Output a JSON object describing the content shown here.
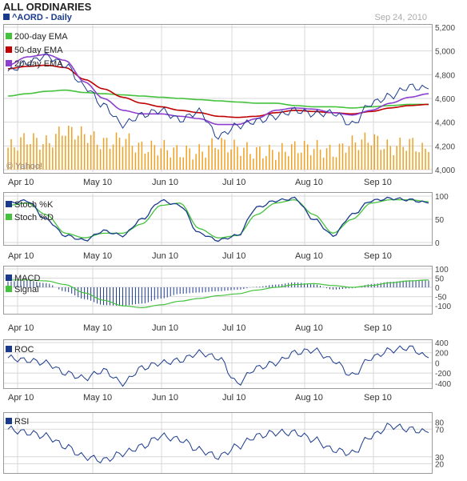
{
  "header": {
    "title": "ALL ORDINARIES",
    "symbol": "^AORD - Daily",
    "date": "Sep 24, 2010",
    "watermark": "© Yahoo!"
  },
  "colors": {
    "price": "#1a3a8c",
    "ema200": "#44c23c",
    "ema50": "#c00000",
    "ema20": "#8e3fd0",
    "volume": "#f0a020",
    "stochK": "#1a3a8c",
    "stochD": "#44c23c",
    "macd": "#1a3a8c",
    "signal": "#44c23c",
    "roc": "#1a3a8c",
    "rsi": "#1a3a8c",
    "grid": "#d8d8d8",
    "panelBorder": "#9a9a9a"
  },
  "x_labels": [
    "Apr 10",
    "May 10",
    "Jun 10",
    "Jul 10",
    "Aug 10",
    "Sep 10"
  ],
  "chart_data": [
    {
      "type": "line",
      "name": "price",
      "legend": [
        "200-day EMA",
        "50-day EMA",
        "20-day EMA"
      ],
      "yticks": [
        "5,200",
        "5,000",
        "4,800",
        "4,600",
        "4,400",
        "4,200",
        "4,000"
      ],
      "ylim": [
        4000,
        5200
      ],
      "x": [
        "Apr 10",
        "",
        "",
        "May 10",
        "",
        "",
        "",
        "Jun 10",
        "",
        "",
        "",
        "Jul 10",
        "",
        "",
        "",
        "Aug 10",
        "",
        "",
        "",
        "Sep 10",
        "",
        "",
        ""
      ],
      "series": [
        {
          "name": "price",
          "values": [
            4830,
            4900,
            4960,
            4880,
            4700,
            4540,
            4380,
            4460,
            4500,
            4420,
            4490,
            4280,
            4370,
            4410,
            4450,
            4500,
            4470,
            4480,
            4380,
            4560,
            4620,
            4700,
            4680
          ]
        },
        {
          "name": "200-day EMA",
          "values": [
            4620,
            4640,
            4660,
            4670,
            4650,
            4640,
            4630,
            4620,
            4610,
            4600,
            4590,
            4580,
            4570,
            4560,
            4560,
            4540,
            4530,
            4530,
            4520,
            4530,
            4540,
            4550,
            4550
          ]
        },
        {
          "name": "50-day EMA",
          "values": [
            4850,
            4870,
            4880,
            4860,
            4760,
            4680,
            4610,
            4560,
            4530,
            4500,
            4480,
            4450,
            4440,
            4450,
            4480,
            4500,
            4490,
            4480,
            4470,
            4490,
            4520,
            4540,
            4550
          ]
        },
        {
          "name": "20-day EMA",
          "values": [
            4880,
            4950,
            4970,
            4920,
            4740,
            4600,
            4500,
            4470,
            4470,
            4450,
            4430,
            4380,
            4380,
            4430,
            4500,
            4520,
            4510,
            4480,
            4460,
            4500,
            4560,
            4610,
            4640
          ]
        }
      ]
    },
    {
      "type": "bar",
      "name": "volume",
      "values": [
        0.5,
        0.7,
        0.6,
        0.9,
        0.8,
        0.6,
        0.7,
        0.5,
        0.5,
        0.4,
        0.4,
        0.6,
        0.5,
        0.4,
        0.4,
        0.5,
        0.5,
        0.4,
        0.6,
        0.7,
        0.5,
        0.6,
        0.4
      ]
    },
    {
      "type": "line",
      "name": "stochastic",
      "legend": [
        "Stoch %K",
        "Stoch %D"
      ],
      "yticks": [
        "100",
        "50",
        "0"
      ],
      "ylim": [
        0,
        100
      ],
      "series": [
        {
          "name": "Stoch %K",
          "values": [
            85,
            90,
            50,
            15,
            5,
            25,
            15,
            50,
            90,
            80,
            20,
            5,
            15,
            75,
            90,
            95,
            50,
            15,
            60,
            90,
            95,
            92,
            85
          ]
        },
        {
          "name": "Stoch %D",
          "values": [
            80,
            85,
            60,
            20,
            10,
            20,
            20,
            40,
            80,
            85,
            30,
            10,
            15,
            60,
            85,
            92,
            60,
            20,
            50,
            85,
            92,
            92,
            88
          ]
        }
      ]
    },
    {
      "type": "line",
      "name": "macd",
      "legend": [
        "MACD",
        "Signal"
      ],
      "yticks": [
        "100",
        "50",
        "0",
        "-50",
        "-100"
      ],
      "ylim": [
        -130,
        100
      ],
      "series": [
        {
          "name": "MACD",
          "values": [
            40,
            45,
            30,
            -20,
            -70,
            -110,
            -120,
            -110,
            -80,
            -50,
            -40,
            -30,
            -20,
            0,
            15,
            30,
            20,
            -10,
            -5,
            20,
            35,
            45,
            45
          ]
        },
        {
          "name": "Signal",
          "values": [
            40,
            40,
            35,
            15,
            -30,
            -70,
            -100,
            -110,
            -95,
            -75,
            -60,
            -45,
            -35,
            -15,
            0,
            15,
            20,
            10,
            0,
            10,
            25,
            35,
            40
          ]
        }
      ]
    },
    {
      "type": "line",
      "name": "roc",
      "legend": [
        "ROC"
      ],
      "yticks": [
        "400",
        "200",
        "0",
        "-200",
        "-400"
      ],
      "ylim": [
        -450,
        400
      ],
      "series": [
        {
          "name": "ROC",
          "values": [
            100,
            50,
            0,
            -200,
            -300,
            -150,
            -400,
            -100,
            0,
            50,
            200,
            100,
            -400,
            -100,
            0,
            200,
            250,
            50,
            -250,
            100,
            250,
            300,
            100
          ]
        }
      ]
    },
    {
      "type": "line",
      "name": "rsi",
      "legend": [
        "RSI"
      ],
      "yticks": [
        "80",
        "70",
        "30",
        "20"
      ],
      "ylim": [
        10,
        90
      ],
      "series": [
        {
          "name": "RSI",
          "values": [
            70,
            65,
            60,
            45,
            30,
            25,
            35,
            45,
            60,
            55,
            40,
            30,
            45,
            60,
            65,
            65,
            55,
            40,
            35,
            60,
            75,
            70,
            65
          ]
        }
      ]
    }
  ]
}
